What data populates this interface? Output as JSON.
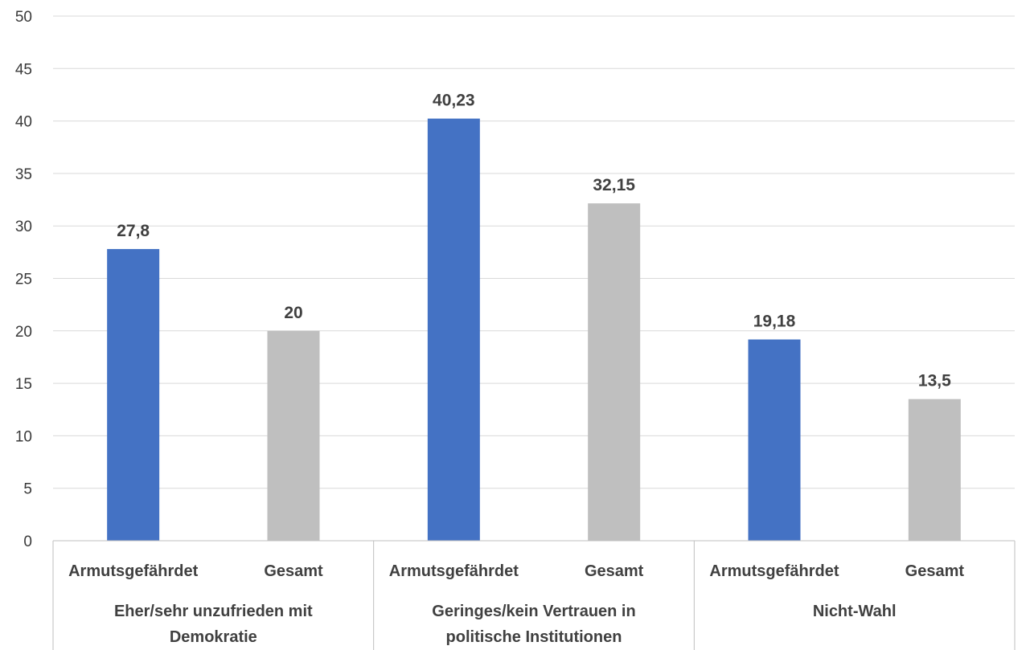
{
  "chart_data": {
    "type": "bar",
    "ylim": [
      0,
      50
    ],
    "yticks": [
      0,
      5,
      10,
      15,
      20,
      25,
      30,
      35,
      40,
      45,
      50
    ],
    "ytick_labels": [
      "0",
      "5",
      "10",
      "15",
      "20",
      "25",
      "30",
      "35",
      "40",
      "45",
      "50"
    ],
    "grid": true,
    "groups": [
      {
        "label_lines": [
          "Eher/sehr unzufrieden mit",
          "Demokratie"
        ],
        "bars": [
          {
            "category": "Armutsgefährdet",
            "value": 27.8,
            "label": "27,8",
            "color": "#4472c4"
          },
          {
            "category": "Gesamt",
            "value": 20,
            "label": "20",
            "color": "#bfbfbf"
          }
        ]
      },
      {
        "label_lines": [
          "Geringes/kein Vertrauen in",
          "politische Institutionen"
        ],
        "bars": [
          {
            "category": "Armutsgefährdet",
            "value": 40.23,
            "label": "40,23",
            "color": "#4472c4"
          },
          {
            "category": "Gesamt",
            "value": 32.15,
            "label": "32,15",
            "color": "#bfbfbf"
          }
        ]
      },
      {
        "label_lines": [
          "Nicht-Wahl"
        ],
        "bars": [
          {
            "category": "Armutsgefährdet",
            "value": 19.18,
            "label": "19,18",
            "color": "#4472c4"
          },
          {
            "category": "Gesamt",
            "value": 13.5,
            "label": "13,5",
            "color": "#bfbfbf"
          }
        ]
      }
    ]
  }
}
